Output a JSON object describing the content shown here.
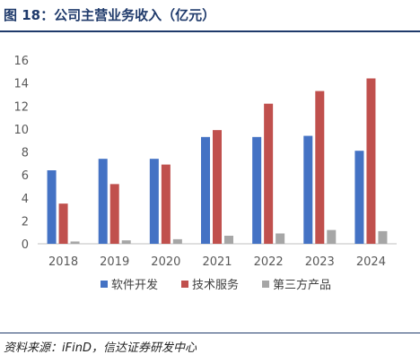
{
  "header": {
    "title": "图 18：公司主营业务收入（亿元）"
  },
  "footer": {
    "source": "资料来源：iFinD，信达证券研发中心"
  },
  "colors": {
    "title": "#1f3a6b",
    "series": [
      "#4472c4",
      "#c0504d",
      "#a6a6a6"
    ]
  },
  "chart_data": {
    "type": "bar",
    "title": "",
    "xlabel": "",
    "ylabel": "",
    "categories": [
      "2018",
      "2019",
      "2020",
      "2021",
      "2022",
      "2023",
      "2024"
    ],
    "series": [
      {
        "name": "软件开发",
        "values": [
          6.4,
          7.4,
          7.4,
          9.3,
          9.3,
          9.4,
          8.1
        ]
      },
      {
        "name": "技术服务",
        "values": [
          3.5,
          5.2,
          6.9,
          9.9,
          12.2,
          13.3,
          14.4
        ]
      },
      {
        "name": "第三方产品",
        "values": [
          0.2,
          0.3,
          0.4,
          0.7,
          0.9,
          1.2,
          1.1
        ]
      }
    ],
    "ylim": [
      0,
      16
    ],
    "yticks": [
      0,
      2,
      4,
      6,
      8,
      10,
      12,
      14,
      16
    ],
    "grid": false,
    "legend": "bottom"
  }
}
